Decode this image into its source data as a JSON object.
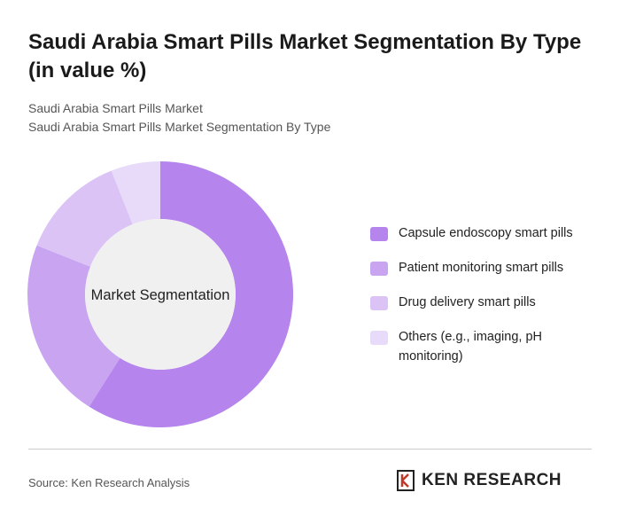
{
  "chart_data": {
    "type": "donut",
    "title": "Saudi Arabia Smart Pills Market Segmentation By Type (in value %)",
    "subtitle": [
      "Saudi Arabia Smart Pills Market",
      "Saudi Arabia Smart Pills Market Segmentation By Type"
    ],
    "center_label": "Market Segmentation",
    "series": [
      {
        "name": "Capsule endoscopy smart pills",
        "color": "#b584ec",
        "values": [
          59
        ]
      },
      {
        "name": "Patient monitoring smart pills",
        "color": "#c8a4f1",
        "values": [
          22
        ]
      },
      {
        "name": "Drug delivery smart pills",
        "color": "#dcc3f6",
        "values": [
          13
        ]
      },
      {
        "name": "Others (e.g., imaging, pH monitoring)",
        "color": "#e8dbf9",
        "values": [
          6
        ]
      }
    ],
    "legend": "right"
  },
  "source": "Source: Ken Research Analysis",
  "brand": "KEN RESEARCH"
}
